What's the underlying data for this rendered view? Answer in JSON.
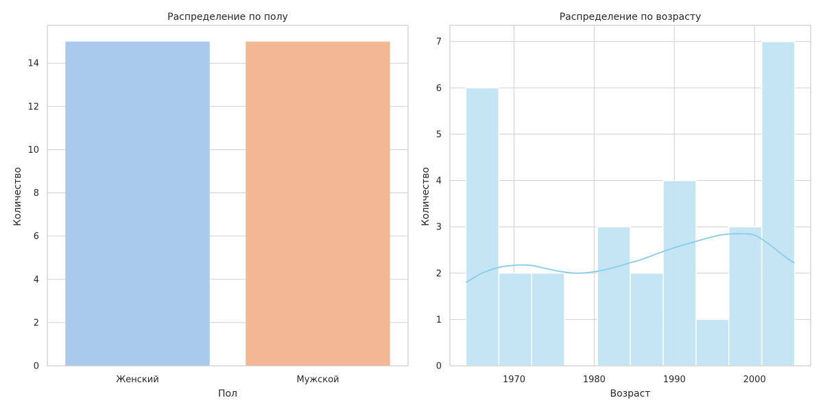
{
  "chart_data": [
    {
      "type": "bar",
      "title": "Распределение по полу",
      "xlabel": "Пол",
      "ylabel": "Количество",
      "categories": [
        "Женский",
        "Мужской"
      ],
      "values": [
        15,
        15
      ],
      "colors": [
        "#a9c9ec",
        "#f1b893"
      ],
      "ylim": [
        0,
        15.75
      ],
      "yticks": [
        0,
        2,
        4,
        6,
        8,
        10,
        12,
        14
      ],
      "grid": true
    },
    {
      "type": "bar",
      "subtype": "histogram",
      "title": "Распределение по возрасту",
      "xlabel": "Возраст",
      "ylabel": "Количество",
      "bins": [
        {
          "start": 1964.0,
          "end": 1968.1,
          "count": 6
        },
        {
          "start": 1968.1,
          "end": 1972.2,
          "count": 2
        },
        {
          "start": 1972.2,
          "end": 1976.3,
          "count": 2
        },
        {
          "start": 1976.3,
          "end": 1980.4,
          "count": 0
        },
        {
          "start": 1980.4,
          "end": 1984.5,
          "count": 3
        },
        {
          "start": 1984.5,
          "end": 1988.6,
          "count": 2
        },
        {
          "start": 1988.6,
          "end": 1992.7,
          "count": 4
        },
        {
          "start": 1992.7,
          "end": 1996.8,
          "count": 1
        },
        {
          "start": 1996.8,
          "end": 2000.9,
          "count": 3
        },
        {
          "start": 2000.9,
          "end": 2005.0,
          "count": 7
        }
      ],
      "kde": {
        "x": [
          1964,
          1966,
          1968,
          1970,
          1972,
          1974,
          1976,
          1978,
          1980,
          1982,
          1984,
          1986,
          1988,
          1990,
          1992,
          1994,
          1996,
          1998,
          2000,
          2002,
          2004,
          2005
        ],
        "y": [
          1.8,
          2.0,
          2.12,
          2.17,
          2.17,
          2.1,
          2.03,
          2.0,
          2.03,
          2.1,
          2.2,
          2.3,
          2.43,
          2.55,
          2.65,
          2.75,
          2.83,
          2.85,
          2.82,
          2.6,
          2.33,
          2.22
        ]
      },
      "bar_color": "#c2e4f3",
      "line_color": "#87cde9",
      "xlim": [
        1962.0,
        2007.0
      ],
      "ylim": [
        0,
        7.35
      ],
      "xticks": [
        1970,
        1980,
        1990,
        2000
      ],
      "yticks": [
        0,
        1,
        2,
        3,
        4,
        5,
        6,
        7
      ],
      "grid": true
    }
  ]
}
